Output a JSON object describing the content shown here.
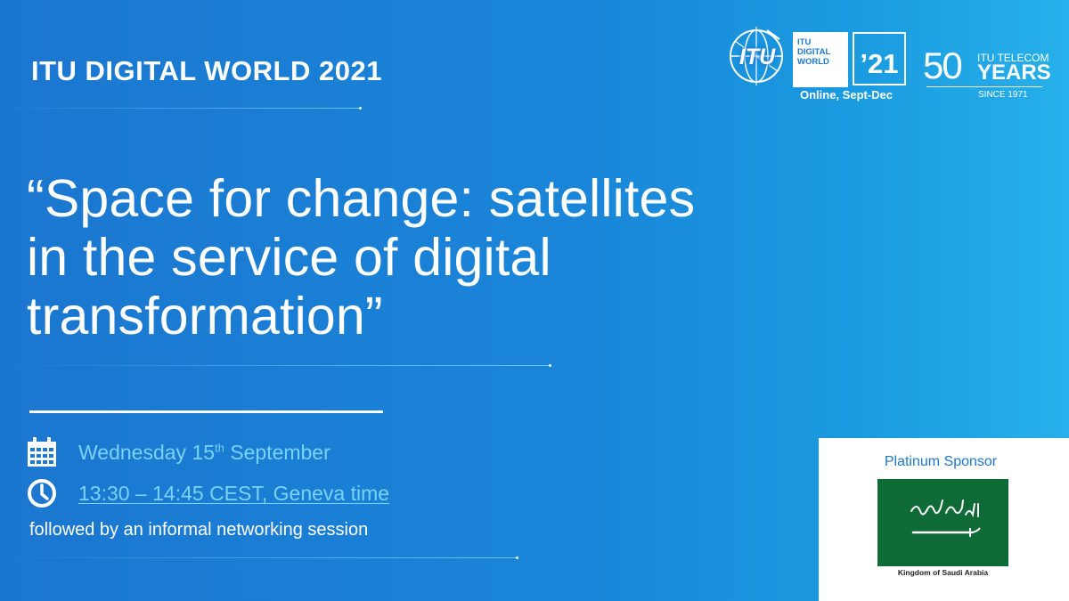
{
  "event": {
    "title": "ITU DIGITAL WORLD 2021"
  },
  "headline": {
    "lines": [
      "“Space for change: satellites",
      "in the service of digital",
      "transformation”"
    ]
  },
  "date": {
    "weekday_day": "Wednesday 15",
    "suffix": "th",
    "month": " September"
  },
  "time": {
    "text": "13:30 – 14:45 CEST, Geneva time"
  },
  "networking": {
    "text": "followed by an informal networking session"
  },
  "logos": {
    "itu": "ITU",
    "digital_world_lines": [
      "ITU",
      "DIGITAL",
      "WORLD"
    ],
    "year": "’21",
    "online": "Online, Sept-Dec",
    "fifty": "50",
    "telecom": "ITU TELECOM",
    "years": "YEARS",
    "since": "SINCE 1971"
  },
  "sponsor": {
    "label": "Platinum Sponsor",
    "flag_caption": "Kingdom of  Saudi Arabia"
  },
  "colors": {
    "background_start": "#1b76cf",
    "background_end": "#27b0ea",
    "info_text": "#7ad3f7",
    "flag_green": "#0f6b35"
  },
  "icons": [
    "calendar-icon",
    "clock-icon",
    "itu-globe-icon",
    "saudi-flag-icon"
  ]
}
